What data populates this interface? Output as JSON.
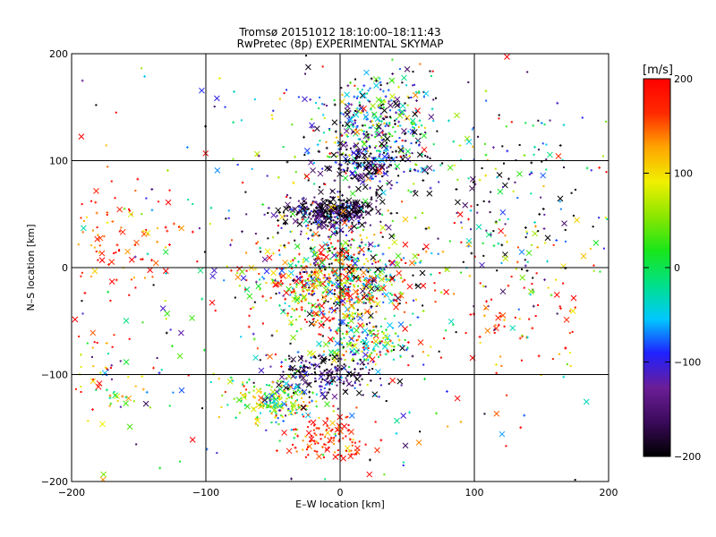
{
  "chart_data": {
    "type": "scatter",
    "title": "Tromsø 20151012 18:10:00–18:11:43",
    "subtitle": "RwPretec (8p) EXPERIMENTAL SKYMAP",
    "xlabel": "E–W location [km]",
    "ylabel": "N–S location [km]",
    "xlim": [
      -200,
      200
    ],
    "ylim": [
      -200,
      200
    ],
    "x_ticks": [
      -200,
      -100,
      0,
      100,
      200
    ],
    "y_ticks": [
      -200,
      -100,
      0,
      100,
      200
    ],
    "grid": true,
    "colorbar": {
      "label": "[m/s]",
      "range": [
        -200,
        200
      ],
      "ticks": [
        200,
        100,
        0,
        -100,
        -200
      ],
      "colors": [
        "#000000",
        "#3a0a5a",
        "#6b1e96",
        "#2020ff",
        "#00c8ff",
        "#00e08a",
        "#19e619",
        "#8ce600",
        "#f0f000",
        "#ffa500",
        "#ff2a00",
        "#ff0000"
      ]
    },
    "markers": [
      "x",
      "+",
      "dot"
    ],
    "clusters": [
      {
        "cx": 25,
        "cy": 130,
        "sx": 22,
        "sy": 25,
        "n": 420,
        "vmean": -60,
        "vsd": 110
      },
      {
        "cx": 20,
        "cy": 95,
        "sx": 18,
        "sy": 10,
        "n": 160,
        "vmean": -160,
        "vsd": 60
      },
      {
        "cx": -10,
        "cy": 50,
        "sx": 18,
        "sy": 8,
        "n": 300,
        "vmean": -170,
        "vsd": 55
      },
      {
        "cx": 5,
        "cy": 55,
        "sx": 14,
        "sy": 6,
        "n": 90,
        "vmean": -200,
        "vsd": 20
      },
      {
        "cx": 0,
        "cy": -10,
        "sx": 25,
        "sy": 25,
        "n": 560,
        "vmean": 10,
        "vsd": 140
      },
      {
        "cx": -15,
        "cy": -15,
        "sx": 30,
        "sy": 20,
        "n": 200,
        "vmean": 150,
        "vsd": 80
      },
      {
        "cx": 20,
        "cy": -70,
        "sx": 18,
        "sy": 10,
        "n": 140,
        "vmean": 40,
        "vsd": 90
      },
      {
        "cx": -10,
        "cy": -100,
        "sx": 22,
        "sy": 12,
        "n": 220,
        "vmean": -170,
        "vsd": 60
      },
      {
        "cx": -50,
        "cy": -125,
        "sx": 18,
        "sy": 12,
        "n": 180,
        "vmean": 30,
        "vsd": 70
      },
      {
        "cx": -5,
        "cy": -160,
        "sx": 15,
        "sy": 12,
        "n": 120,
        "vmean": 190,
        "vsd": 40
      },
      {
        "cx": -165,
        "cy": 20,
        "sx": 25,
        "sy": 25,
        "n": 90,
        "vmean": 170,
        "vsd": 50
      },
      {
        "cx": -175,
        "cy": -100,
        "sx": 20,
        "sy": 30,
        "n": 70,
        "vmean": 60,
        "vsd": 100
      },
      {
        "cx": 140,
        "cy": 60,
        "sx": 30,
        "sy": 40,
        "n": 130,
        "vmean": -120,
        "vsd": 110
      },
      {
        "cx": 130,
        "cy": -30,
        "sx": 35,
        "sy": 40,
        "n": 100,
        "vmean": 160,
        "vsd": 70
      },
      {
        "cx": 0,
        "cy": 0,
        "sx": 110,
        "sy": 110,
        "n": 500,
        "vmean": 0,
        "vsd": 160
      }
    ]
  }
}
